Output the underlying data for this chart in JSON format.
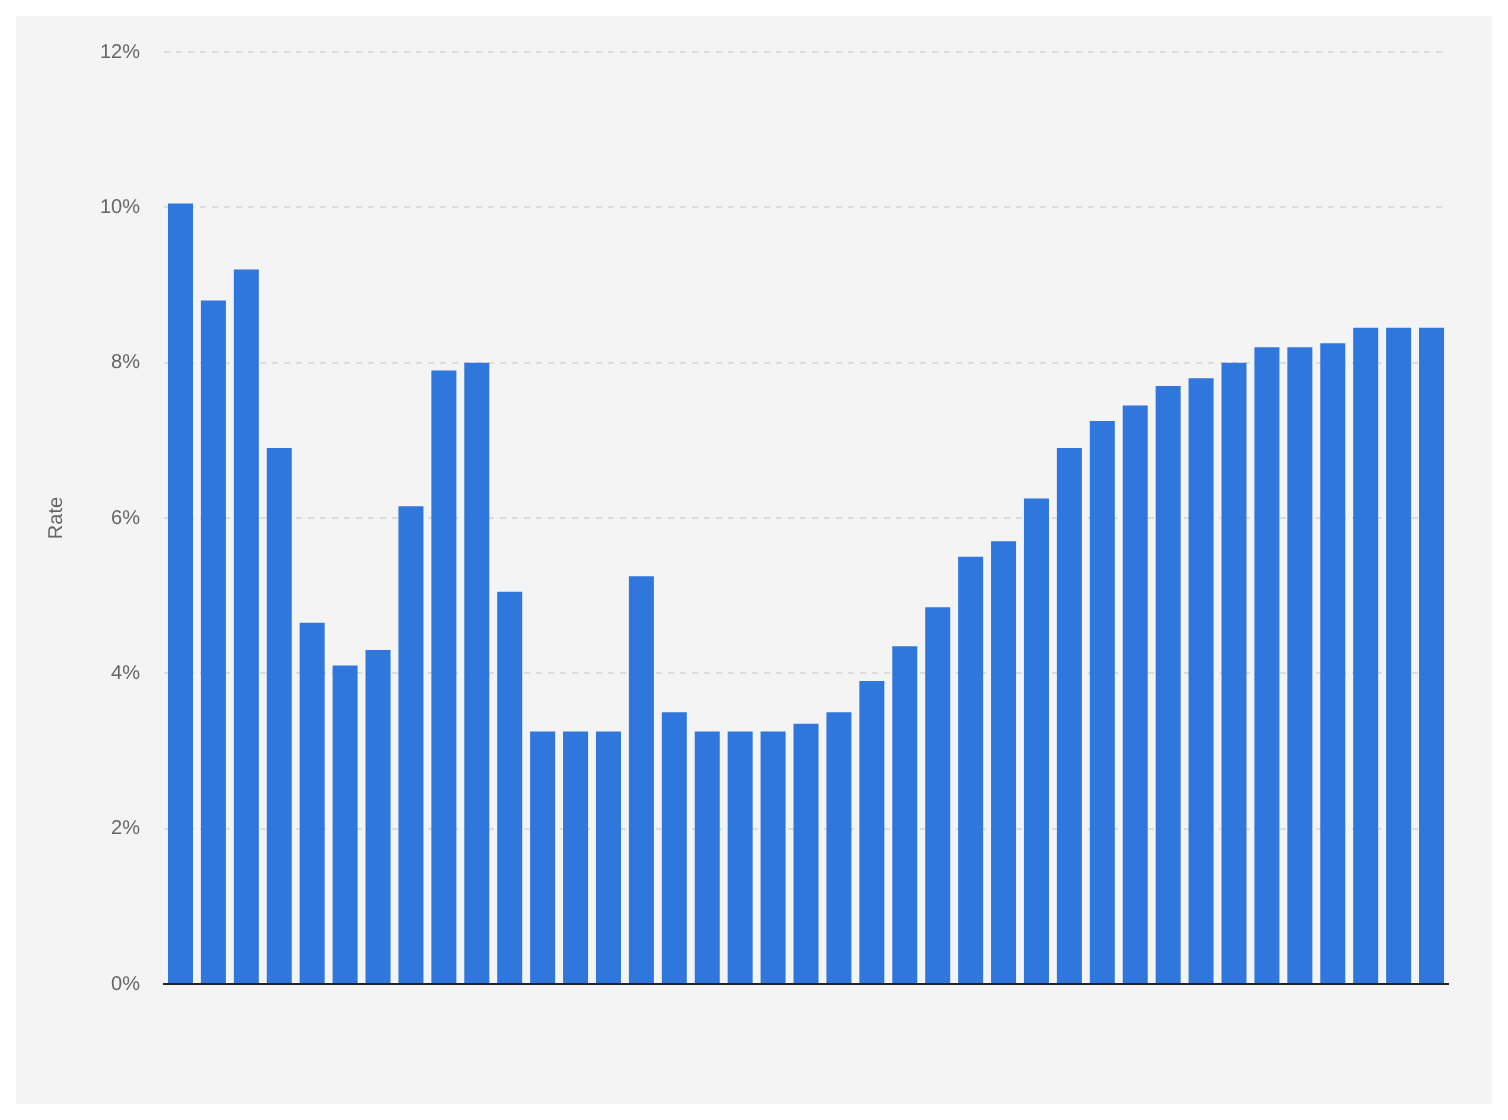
{
  "chart_data": {
    "type": "bar",
    "ylabel": "Rate",
    "categories": [
      null,
      null,
      null,
      null,
      null,
      null,
      null,
      null,
      null,
      null,
      null,
      null,
      null,
      null,
      null,
      null,
      null,
      null,
      null,
      null,
      null,
      null,
      null,
      null,
      null,
      null,
      null,
      null,
      null,
      null,
      null,
      null,
      null,
      null,
      null,
      null,
      null,
      null,
      null
    ],
    "series": [
      {
        "color": "#2f77dd",
        "values": [
          10.05,
          8.8,
          9.2,
          6.9,
          4.65,
          4.1,
          4.3,
          6.15,
          7.9,
          8.0,
          5.05,
          3.25,
          3.25,
          3.25,
          5.25,
          3.5,
          3.25,
          3.25,
          3.25,
          3.35,
          3.5,
          3.9,
          4.35,
          4.85,
          5.5,
          5.7,
          6.25,
          6.9,
          7.25,
          7.45,
          7.7,
          7.8,
          8.0,
          8.2,
          8.2,
          8.25,
          8.45,
          8.45,
          8.45
        ]
      }
    ],
    "ylim": [
      0,
      12
    ],
    "yticks": [
      {
        "value": 0,
        "label": "0%"
      },
      {
        "value": 2,
        "label": "2%"
      },
      {
        "value": 4,
        "label": "4%"
      },
      {
        "value": 6,
        "label": "6%"
      },
      {
        "value": 8,
        "label": "8%"
      },
      {
        "value": 10,
        "label": "10%"
      },
      {
        "value": 12,
        "label": "12%"
      }
    ],
    "grid": "y",
    "legend": false,
    "tick_labels": "y"
  }
}
